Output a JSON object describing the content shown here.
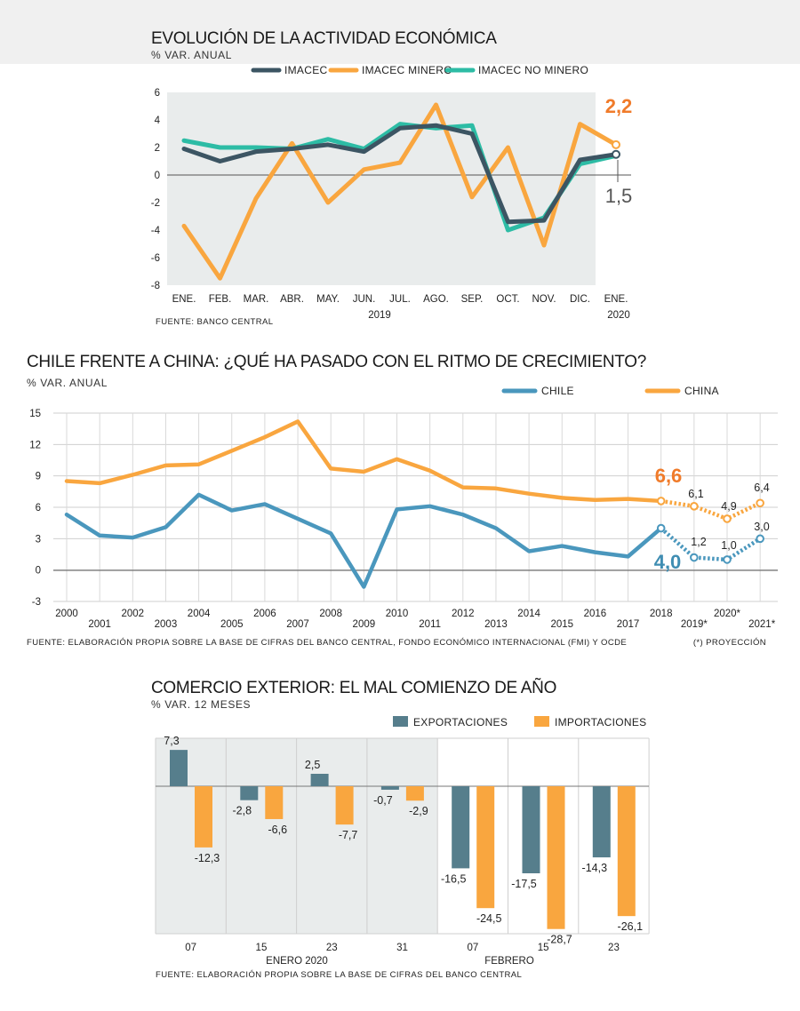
{
  "chart_data": [
    {
      "type": "line",
      "title": "EVOLUCIÓN DE LA ACTIVIDAD ECONÓMICA",
      "subtitle": "% VAR. ANUAL",
      "categories": [
        "ENE.",
        "FEB.",
        "MAR.",
        "ABR.",
        "MAY.",
        "JUN.",
        "JUL.",
        "AGO.",
        "SEP.",
        "OCT.",
        "NOV.",
        "DIC.",
        "ENE."
      ],
      "year_labels": [
        "2019",
        "2020"
      ],
      "ylim": [
        -8,
        6
      ],
      "yticks": [
        6,
        4,
        2,
        0,
        -2,
        -4,
        -6,
        -8
      ],
      "series": [
        {
          "name": "IMACEC",
          "color": "#3c5563",
          "values": [
            1.9,
            1.0,
            1.7,
            1.9,
            2.2,
            1.7,
            3.4,
            3.6,
            3.0,
            -3.4,
            -3.3,
            1.1,
            1.5
          ]
        },
        {
          "name": "IMACEC MINERO",
          "color": "#f9a63f",
          "values": [
            -3.7,
            -7.5,
            -1.7,
            2.3,
            -2.0,
            0.4,
            0.9,
            5.1,
            -1.6,
            2.0,
            -5.1,
            3.7,
            2.2
          ]
        },
        {
          "name": "IMACEC NO MINERO",
          "color": "#2dbca5",
          "values": [
            2.5,
            2.0,
            2.0,
            1.9,
            2.6,
            1.9,
            3.7,
            3.4,
            3.6,
            -4.0,
            -3.1,
            0.8,
            1.4
          ]
        }
      ],
      "callouts": [
        {
          "text": "2,2",
          "color": "#f07b2a"
        },
        {
          "text": "1,5",
          "color": "#555555"
        }
      ],
      "source": "FUENTE: BANCO CENTRAL"
    },
    {
      "type": "line",
      "title": "CHILE FRENTE A CHINA: ¿QUÉ HA PASADO CON EL RITMO DE CRECIMIENTO?",
      "subtitle": "% VAR. ANUAL",
      "x": [
        "2000",
        "2001",
        "2002",
        "2003",
        "2004",
        "2005",
        "2006",
        "2007",
        "2008",
        "2009",
        "2010",
        "2011",
        "2012",
        "2013",
        "2014",
        "2015",
        "2016",
        "2017",
        "2018",
        "2019*",
        "2020*",
        "2021*"
      ],
      "ylim": [
        -3,
        15
      ],
      "yticks": [
        15,
        12,
        9,
        6,
        3,
        0,
        -3
      ],
      "series": [
        {
          "name": "CHILE",
          "color": "#4a97bd",
          "values": [
            5.3,
            3.3,
            3.1,
            4.1,
            7.2,
            5.7,
            6.3,
            4.9,
            3.5,
            -1.6,
            5.8,
            6.1,
            5.3,
            4.0,
            1.8,
            2.3,
            1.7,
            1.3,
            4.0,
            1.2,
            1.0,
            3.0
          ]
        },
        {
          "name": "CHINA",
          "color": "#f9a63f",
          "values": [
            8.5,
            8.3,
            9.1,
            10.0,
            10.1,
            11.4,
            12.7,
            14.2,
            9.7,
            9.4,
            10.6,
            9.5,
            7.9,
            7.8,
            7.3,
            6.9,
            6.7,
            6.8,
            6.6,
            6.1,
            4.9,
            6.4
          ]
        }
      ],
      "labels": {
        "china_2018": "6,6",
        "china_2019": "6,1",
        "china_2020": "4,9",
        "china_2021": "6,4",
        "chile_2018": "4,0",
        "chile_2019": "1,2",
        "chile_2020": "1,0",
        "chile_2021": "3,0"
      },
      "source": "FUENTE: ELABORACIÓN PROPIA SOBRE LA BASE DE CIFRAS DEL BANCO CENTRAL, FONDO ECONÓMICO INTERNACIONAL (FMI) Y OCDE",
      "note": "(*) PROYECCIÓN"
    },
    {
      "type": "bar",
      "title": "COMERCIO EXTERIOR: EL MAL COMIENZO DE AÑO",
      "subtitle": "% VAR. 12 MESES",
      "categories": [
        "07",
        "15",
        "23",
        "31",
        "07",
        "15",
        "23"
      ],
      "group_labels": [
        "ENERO 2020",
        "FEBRERO"
      ],
      "series": [
        {
          "name": "EXPORTACIONES",
          "color": "#567e8c",
          "values": [
            7.3,
            -2.8,
            2.5,
            -0.7,
            -16.5,
            -17.5,
            -14.3
          ],
          "labels": [
            "7,3",
            "-2,8",
            "2,5",
            "-0,7",
            "-16,5",
            "-17,5",
            "-14,3"
          ]
        },
        {
          "name": "IMPORTACIONES",
          "color": "#f9a63f",
          "values": [
            -12.3,
            -6.6,
            -7.7,
            -2.9,
            -24.5,
            -28.7,
            -26.1
          ],
          "labels": [
            "-12,3",
            "-6,6",
            "-7,7",
            "-2,9",
            "-24,5",
            "-28,7",
            "-26,1"
          ]
        }
      ],
      "source": "FUENTE: ELABORACIÓN PROPIA SOBRE LA BASE DE CIFRAS DEL BANCO CENTRAL"
    }
  ]
}
